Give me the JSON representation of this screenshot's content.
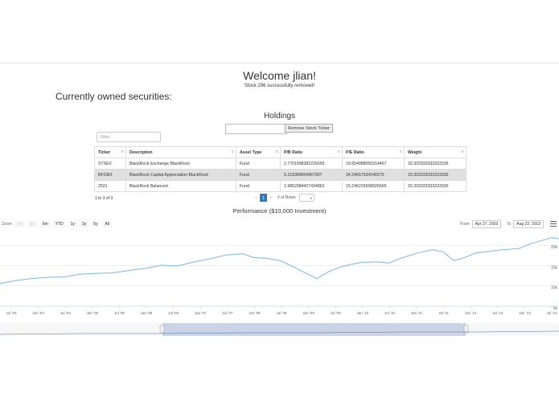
{
  "header": {
    "welcome": "Welcome jlian!",
    "status": "Stock 296 successfully removed!",
    "owned_title": "Currently owned securities:"
  },
  "holdings": {
    "title": "Holdings",
    "ticker_input_value": "",
    "remove_button": "Remove Stock Ticker",
    "filter_placeholder": "Filter...",
    "columns": [
      "Ticker",
      "Description",
      "Asset Type",
      "P/B Ratio",
      "P/E Ratio",
      "Weight"
    ],
    "rows": [
      [
        "STSEX",
        "BlackRock Exchange BlackRock",
        "Fund",
        "2.7701598382226655",
        "19.654088050314467",
        "33.333333333333336"
      ],
      [
        "BFGBX",
        "BlackRock Capital Appreciation BlackRock",
        "Fund",
        "5.218389604967907",
        "34.24657534246575",
        "33.333333333333336"
      ],
      [
        "2521",
        "BlackRock Balanced",
        "Fund",
        "1.9852984427434862",
        "15.246226558926665",
        "33.333333333333336"
      ]
    ],
    "count_text": "1 to 3 of 3",
    "pager": {
      "prev": "«",
      "page": "1",
      "next": "»",
      "rows_label": "# of Rows:",
      "rows_value": ""
    }
  },
  "chart_data": {
    "type": "line",
    "title": "Performance ($10,000 Investment)",
    "zoom_label": "Zoom",
    "zoom_buttons": [
      "1m",
      "3m",
      "6m",
      "YTD",
      "1y",
      "3y",
      "5y",
      "All"
    ],
    "from_label": "From",
    "from_value": "Apr 27, 2003",
    "to_label": "To",
    "to_value": "Aug 22, 2013",
    "x_ticks": [
      "Jul '03",
      "Jan '04",
      "Jul '04",
      "Jan '05",
      "Jul '05",
      "Jan '06",
      "Jul '06",
      "Jan '07",
      "Jul '07",
      "Jan '08",
      "Jul '08",
      "Jan '09",
      "Jul '09",
      "Jan '10",
      "Jul '10",
      "Jan '11",
      "Jul '11",
      "Jan '12",
      "Jul '12",
      "Jan '13",
      "Jul '13"
    ],
    "y_ticks": [
      "20k",
      "15k",
      "10k",
      "5k"
    ],
    "ylim": [
      5000,
      24000
    ],
    "x": [
      2003.32,
      2003.6,
      2003.9,
      2004.2,
      2004.5,
      2004.8,
      2005.1,
      2005.4,
      2005.7,
      2006.0,
      2006.3,
      2006.6,
      2006.9,
      2007.2,
      2007.5,
      2007.8,
      2008.0,
      2008.25,
      2008.5,
      2008.75,
      2009.0,
      2009.17,
      2009.4,
      2009.6,
      2009.8,
      2010.0,
      2010.3,
      2010.5,
      2010.7,
      2011.0,
      2011.3,
      2011.5,
      2011.7,
      2011.9,
      2012.1,
      2012.4,
      2012.6,
      2012.9,
      2013.1,
      2013.3,
      2013.5,
      2013.64
    ],
    "values": [
      10600,
      11300,
      11800,
      12100,
      12200,
      12900,
      13100,
      13200,
      13800,
      14300,
      15100,
      14900,
      15900,
      16700,
      17600,
      17900,
      17000,
      16800,
      16200,
      14600,
      12900,
      11800,
      13600,
      14600,
      15300,
      15800,
      15900,
      15600,
      16700,
      18000,
      18900,
      18400,
      16200,
      17000,
      18100,
      18600,
      18900,
      19200,
      20300,
      21100,
      21900,
      21600
    ],
    "color": "#7cb5ec"
  }
}
